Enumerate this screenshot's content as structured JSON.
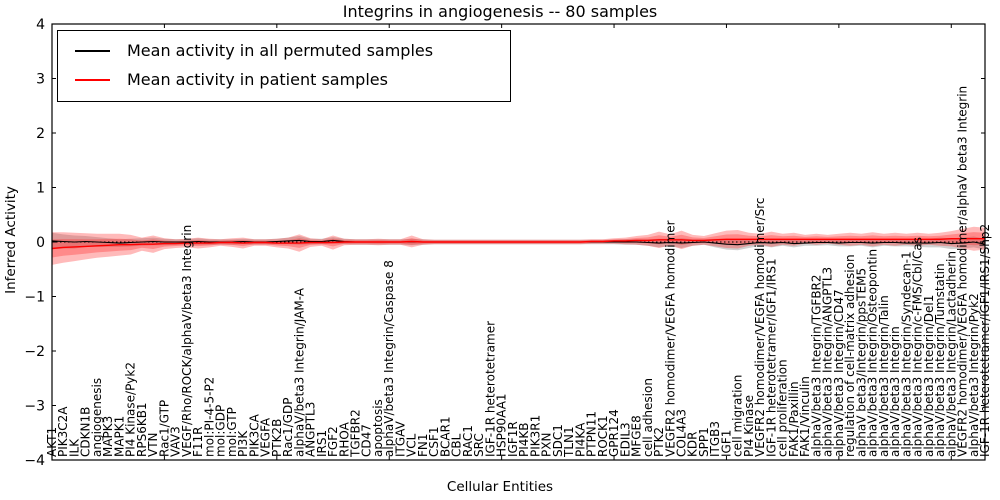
{
  "chart_data": {
    "type": "line",
    "title": "Integrins in angiogenesis -- 80 samples",
    "xlabel": "Cellular Entities",
    "ylabel": "Inferred Activity",
    "ylim": [
      -4,
      4
    ],
    "yticks": [
      -4,
      -3,
      -2,
      -1,
      0,
      1,
      2,
      3,
      4
    ],
    "x_major_tick_interval": 10,
    "grid": false,
    "zero_line": true,
    "legend_position": "upper left",
    "legend": [
      {
        "label": "Mean activity in all permuted samples",
        "color": "#000000"
      },
      {
        "label": "Mean activity in patient samples",
        "color": "#ff0000"
      }
    ],
    "categories": [
      "AKT1",
      "PIK3C2A",
      "ILK",
      "CDKN1B",
      "angiogenesis",
      "MAPK3",
      "MAPK1",
      "PI4 Kinase/Pyk2",
      "RPS6KB1",
      "VTN",
      "Rac1/GTP",
      "VAV3",
      "VEGF/Rho/ROCK/alphaV/beta3 Integrin",
      "F11R",
      "mol:PI-4-5-P2",
      "mol:GDP",
      "mol:GTP",
      "PI3K",
      "PIK3CA",
      "VEGFA",
      "PTK2B",
      "Rac1/GDP",
      "alphaV/beta3 Integrin/JAM-A",
      "ANGPTL3",
      "IRS1",
      "FGF2",
      "RHOA",
      "TGFBR2",
      "CD47",
      "apoptosis",
      "alphaV/beta3 Integrin/Caspase 8",
      "ITGAV",
      "VCL",
      "FN1",
      "CSF1",
      "BCAR1",
      "CBL",
      "RAC1",
      "SRC",
      "IGF-1R heterotetramer",
      "HSP90AA1",
      "IGF1R",
      "PI4KB",
      "PIK3R1",
      "PXN",
      "SDC1",
      "TLN1",
      "PI4KA",
      "PTPN11",
      "ROCK1",
      "GPR124",
      "EDIL3",
      "MFGE8",
      "cell adhesion",
      "PTK2",
      "VEGFR2 homodimer/VEGFA homodimer",
      "COL4A3",
      "KDR",
      "SPP1",
      "ITGB3",
      "IGF1",
      "cell migration",
      "PI4 Kinase",
      "VEGFR2 homodimer/VEGFA homodimer/Src",
      "IGF-1R heterotetramer/IGF1/IRS1",
      "cell proliferation",
      "FAK1/Paxillin",
      "FAK1/Vinculin",
      "alphaV/beta3 Integrin/TGFBR2",
      "alphaV/beta3 Integrin/ANGPTL3",
      "alphaV/beta3 Integrin/CD47",
      "regulation of cell-matrix adhesion",
      "alphaV beta3/Integrin/ppsTEM5",
      "alphaV/beta3 Integrin/Osteopontin",
      "alphaV/beta3 Integrin/Talin",
      "alphaV/beta3 Integrin",
      "alphaV/beta3 Integrin/Syndecan-1",
      "alphaV/beta3 Integrin/c-FMS/Cbl/Cas",
      "alphaV/beta3 Integrin/Del1",
      "alphaV/beta3 Integrin/Tumstatin",
      "alphaV/beta3 Integrin/Lactadherin",
      "VEGFR2 homodimer/VEGFA homodimer/alphaV beta3 Integrin",
      "alphaV/beta3 Integrin/Pyk2",
      "IGF-1R heterotetramer/IGF1/IRS1/Shp2"
    ],
    "series": [
      {
        "name": "Mean activity in all permuted samples",
        "color": "#000000",
        "band_color": "#000000",
        "band_alpha": 0.18,
        "values": [
          0.02,
          0.01,
          0.0,
          0.01,
          0.0,
          -0.01,
          -0.02,
          -0.01,
          0.0,
          0.01,
          0.0,
          0.0,
          0.0,
          0.01,
          0.0,
          0.0,
          0.0,
          0.01,
          0.0,
          0.0,
          0.01,
          0.02,
          0.03,
          0.01,
          0.01,
          0.03,
          0.01,
          0.0,
          0.0,
          0.0,
          0.0,
          0.0,
          0.0,
          0.0,
          0.0,
          0.0,
          0.0,
          0.0,
          0.0,
          0.0,
          0.0,
          0.0,
          0.0,
          0.0,
          0.0,
          0.0,
          0.0,
          0.0,
          0.0,
          0.0,
          0.0,
          0.0,
          0.0,
          -0.01,
          -0.02,
          -0.01,
          -0.02,
          -0.01,
          0.0,
          -0.02,
          -0.04,
          -0.05,
          -0.03,
          -0.01,
          -0.02,
          -0.01,
          -0.03,
          -0.02,
          -0.01,
          -0.01,
          -0.02,
          -0.01,
          -0.01,
          -0.02,
          -0.01,
          -0.01,
          -0.02,
          -0.02,
          -0.02,
          -0.01,
          -0.03,
          -0.02,
          0.0,
          -0.04
        ],
        "band": [
          0.15,
          0.13,
          0.12,
          0.1,
          0.09,
          0.08,
          0.07,
          0.07,
          0.07,
          0.07,
          0.06,
          0.05,
          0.05,
          0.06,
          0.05,
          0.05,
          0.05,
          0.05,
          0.05,
          0.05,
          0.05,
          0.06,
          0.08,
          0.05,
          0.05,
          0.06,
          0.05,
          0.05,
          0.05,
          0.05,
          0.05,
          0.05,
          0.06,
          0.05,
          0.04,
          0.04,
          0.04,
          0.04,
          0.04,
          0.04,
          0.04,
          0.04,
          0.04,
          0.04,
          0.04,
          0.04,
          0.04,
          0.04,
          0.04,
          0.04,
          0.04,
          0.05,
          0.05,
          0.06,
          0.08,
          0.07,
          0.09,
          0.06,
          0.05,
          0.08,
          0.1,
          0.1,
          0.08,
          0.06,
          0.08,
          0.06,
          0.07,
          0.05,
          0.06,
          0.05,
          0.06,
          0.07,
          0.06,
          0.08,
          0.06,
          0.07,
          0.06,
          0.07,
          0.08,
          0.09,
          0.1,
          0.1,
          0.1,
          0.1
        ]
      },
      {
        "name": "Mean activity in patient samples",
        "color": "#ff0000",
        "band_color": "#ff1a1a",
        "band_alpha": 0.3,
        "values": [
          -0.12,
          -0.1,
          -0.09,
          -0.08,
          -0.07,
          -0.06,
          -0.05,
          -0.05,
          -0.04,
          -0.04,
          -0.03,
          -0.03,
          -0.02,
          -0.02,
          -0.02,
          -0.01,
          -0.01,
          -0.02,
          -0.01,
          -0.01,
          -0.02,
          -0.02,
          -0.02,
          -0.01,
          -0.01,
          -0.01,
          0.0,
          0.0,
          0.0,
          0.0,
          0.0,
          0.0,
          0.01,
          0.0,
          0.0,
          0.0,
          0.0,
          0.0,
          0.0,
          0.0,
          0.0,
          0.0,
          0.0,
          0.0,
          0.0,
          0.0,
          0.0,
          0.0,
          0.01,
          0.01,
          0.02,
          0.02,
          0.03,
          0.03,
          0.04,
          0.04,
          0.04,
          0.03,
          0.03,
          0.04,
          0.05,
          0.05,
          0.05,
          0.05,
          0.05,
          0.05,
          0.05,
          0.05,
          0.05,
          0.05,
          0.05,
          0.05,
          0.05,
          0.05,
          0.05,
          0.05,
          0.05,
          0.05,
          0.05,
          0.05,
          0.06,
          0.06,
          0.06,
          0.06
        ],
        "band": [
          0.3,
          0.28,
          0.26,
          0.24,
          0.22,
          0.21,
          0.2,
          0.18,
          0.12,
          0.16,
          0.1,
          0.08,
          0.08,
          0.1,
          0.08,
          0.06,
          0.08,
          0.1,
          0.06,
          0.06,
          0.08,
          0.1,
          0.16,
          0.08,
          0.06,
          0.13,
          0.06,
          0.05,
          0.05,
          0.06,
          0.05,
          0.05,
          0.11,
          0.05,
          0.04,
          0.04,
          0.04,
          0.04,
          0.04,
          0.04,
          0.04,
          0.04,
          0.04,
          0.04,
          0.04,
          0.04,
          0.04,
          0.04,
          0.04,
          0.04,
          0.05,
          0.06,
          0.08,
          0.1,
          0.15,
          0.1,
          0.17,
          0.1,
          0.08,
          0.12,
          0.16,
          0.17,
          0.12,
          0.1,
          0.14,
          0.1,
          0.12,
          0.08,
          0.1,
          0.08,
          0.1,
          0.12,
          0.1,
          0.13,
          0.1,
          0.12,
          0.1,
          0.12,
          0.1,
          0.12,
          0.14,
          0.18,
          0.22,
          0.2
        ]
      }
    ]
  }
}
